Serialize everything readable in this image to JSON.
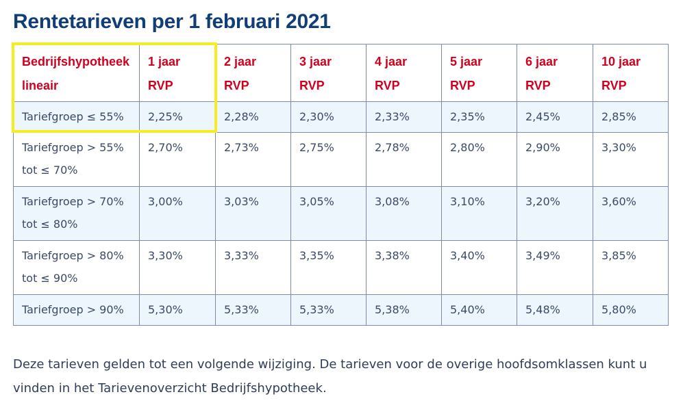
{
  "title": "Rentetarieven per 1 februari 2021",
  "table": {
    "headers": [
      [
        "Bedrijfshypotheek",
        "lineair"
      ],
      [
        "1 jaar",
        "RVP"
      ],
      [
        "2 jaar",
        "RVP"
      ],
      [
        "3 jaar",
        "RVP"
      ],
      [
        "4 jaar",
        "RVP"
      ],
      [
        "5 jaar",
        "RVP"
      ],
      [
        "6 jaar",
        "RVP"
      ],
      [
        "10 jaar",
        "RVP"
      ]
    ],
    "rows": [
      {
        "group": [
          "Tariefgroep ≤ 55%"
        ],
        "rates": [
          "2,25%",
          "2,28%",
          "2,30%",
          "2,33%",
          "2,35%",
          "2,45%",
          "2,85%"
        ]
      },
      {
        "group": [
          "Tariefgroep > 55%",
          "tot ≤ 70%"
        ],
        "rates": [
          "2,70%",
          "2,73%",
          "2,75%",
          "2,78%",
          "2,80%",
          "2,90%",
          "3,30%"
        ]
      },
      {
        "group": [
          "Tariefgroep > 70%",
          "tot ≤ 80%"
        ],
        "rates": [
          "3,00%",
          "3,03%",
          "3,05%",
          "3,08%",
          "3,10%",
          "3,20%",
          "3,60%"
        ]
      },
      {
        "group": [
          "Tariefgroep > 80%",
          "tot ≤ 90%"
        ],
        "rates": [
          "3,30%",
          "3,33%",
          "3,35%",
          "3,38%",
          "3,40%",
          "3,49%",
          "3,85%"
        ]
      },
      {
        "group": [
          "Tariefgroep > 90%"
        ],
        "rates": [
          "5,30%",
          "5,33%",
          "5,33%",
          "5,38%",
          "5,40%",
          "5,48%",
          "5,80%"
        ]
      }
    ]
  },
  "footnote": {
    "text": "Deze tarieven gelden tot een volgende wijziging. De tarieven voor de overige hoofdsomklassen kunt u vinden in het ",
    "link": "Tarievenoverzicht Bedrijfshypotheek",
    "end": "."
  },
  "colors": {
    "title": "#123e78",
    "header_text": "#d1001f",
    "highlight": "#f6ec1f",
    "row_shade": "#eef6fd"
  }
}
